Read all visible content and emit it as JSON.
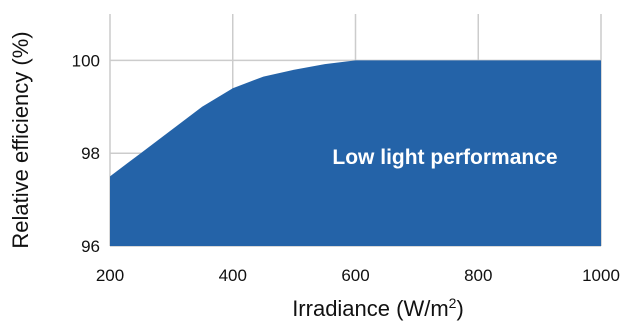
{
  "chart_data": {
    "type": "area",
    "xlabel": "Irradiance (W/m",
    "xlabel_sup": "2",
    "xlabel_end": ")",
    "ylabel": "Relative efficiency (%)",
    "xlim": [
      200,
      1000
    ],
    "ylim": [
      96,
      101
    ],
    "x_ticks": [
      200,
      400,
      600,
      800,
      1000
    ],
    "y_ticks": [
      96,
      98,
      100
    ],
    "grid": true,
    "annotation": "Low light performance",
    "fill_color": "#2463a8",
    "series": [
      {
        "x": [
          200,
          250,
          300,
          350,
          400,
          450,
          500,
          550,
          600,
          700,
          800,
          900,
          1000
        ],
        "values": [
          97.5,
          98.0,
          98.5,
          99.0,
          99.4,
          99.65,
          99.8,
          99.92,
          100.0,
          100.0,
          100.0,
          100.0,
          100.0
        ]
      }
    ]
  }
}
